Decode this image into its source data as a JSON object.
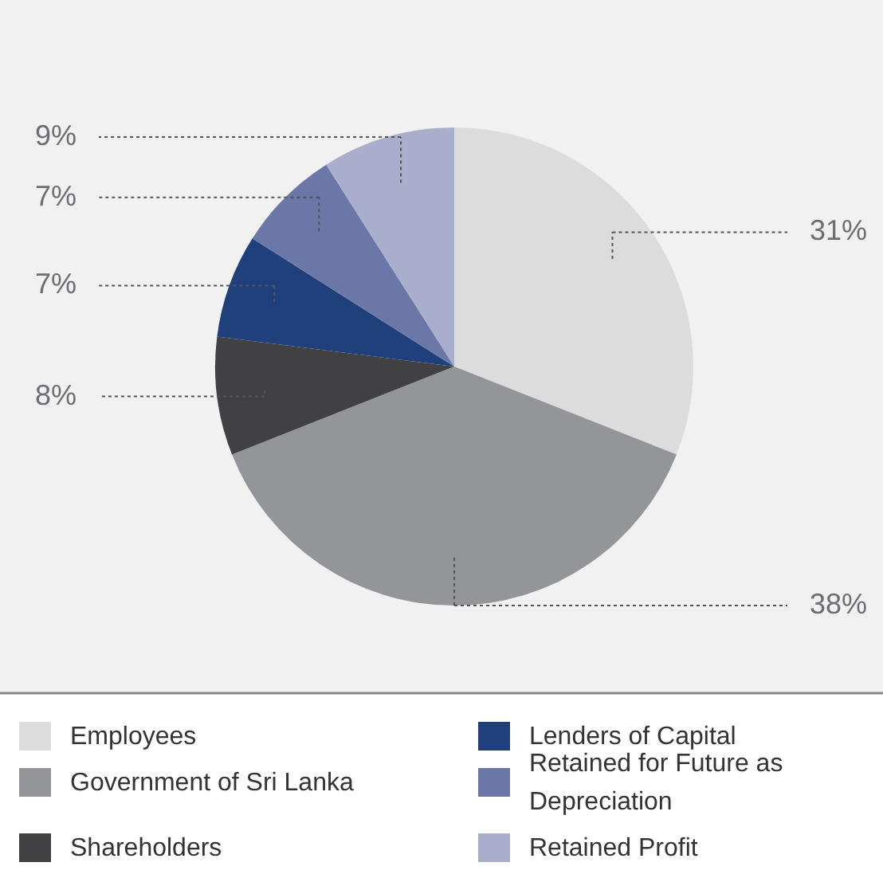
{
  "chart_data": {
    "type": "pie",
    "categories": [
      "Employees",
      "Government of Sri Lanka",
      "Shareholders",
      "Lenders of Capital",
      "Retained for Future as Depreciation",
      "Retained Profit"
    ],
    "values": [
      31,
      38,
      8,
      7,
      7,
      9
    ],
    "colors": [
      "#dcdcdd",
      "#939598",
      "#414042",
      "#1f407b",
      "#6b78a7",
      "#a9aecc"
    ],
    "value_labels": [
      "31%",
      "38%",
      "8%",
      "7%",
      "7%",
      "9%"
    ],
    "legend": "bottom"
  }
}
